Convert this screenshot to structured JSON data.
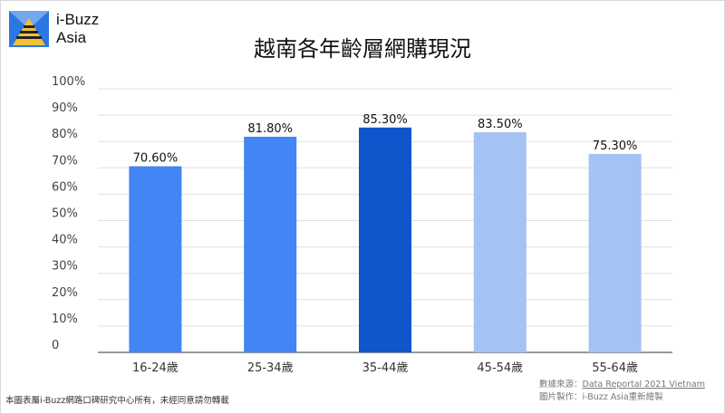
{
  "brand": {
    "line1": "i-Buzz",
    "line2": "Asia"
  },
  "footer": {
    "copyright": "本圖表屬i-Buzz網路口碑研究中心所有，未經同意請勿轉載",
    "source_prefix": "數據來源：",
    "source_link": "Data Reportal 2021 Vietnam",
    "made_by": "圖片製作：i-Buzz Asia重新繪製"
  },
  "chart_data": {
    "type": "bar",
    "title": "越南各年齡層網購現況",
    "categories": [
      "16-24歲",
      "25-34歲",
      "35-44歲",
      "45-54歲",
      "55-64歲"
    ],
    "values": [
      70.6,
      81.8,
      85.3,
      83.5,
      75.3
    ],
    "value_labels": [
      "70.60%",
      "81.80%",
      "85.30%",
      "83.50%",
      "75.30%"
    ],
    "bar_colors": [
      "#4285f4",
      "#4285f4",
      "#1155cc",
      "#a4c2f4",
      "#a4c2f4"
    ],
    "ylim": [
      0,
      100
    ],
    "yticks": [
      0,
      10,
      20,
      30,
      40,
      50,
      60,
      70,
      80,
      90,
      100
    ],
    "ytick_labels": [
      "0",
      "10%",
      "20%",
      "30%",
      "40%",
      "50%",
      "60%",
      "70%",
      "80%",
      "90%",
      "100%"
    ],
    "grid": true,
    "xlabel": "",
    "ylabel": ""
  }
}
